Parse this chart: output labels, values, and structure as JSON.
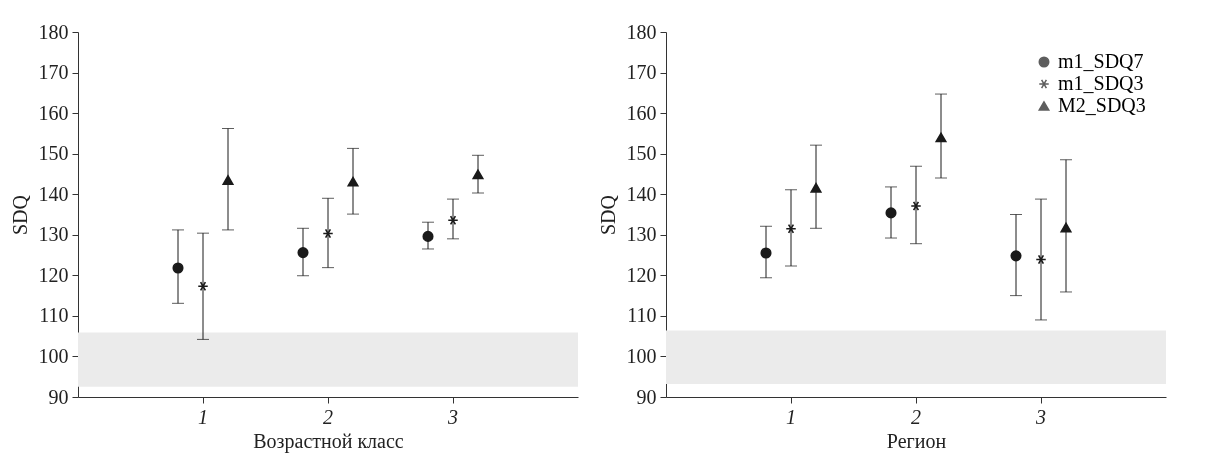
{
  "chart_data": [
    {
      "type": "scatter",
      "categories": [
        "1",
        "2",
        "3"
      ],
      "xlabel": "Возрастной класс",
      "ylabel": "SDQ",
      "ylim": [
        90,
        180
      ],
      "yticks": [
        90,
        100,
        110,
        120,
        130,
        140,
        150,
        160,
        170,
        180
      ],
      "grid": false,
      "bands": [
        {
          "axis": "y",
          "from": 92.5,
          "to": 105.9,
          "color": "#ebebeb"
        }
      ],
      "series": [
        {
          "color": "#1a1a1a",
          "marker": "circle",
          "values": [
            121.8,
            125.6,
            129.6
          ],
          "errors": [
            [
              113.1,
              131.2
            ],
            [
              119.9,
              131.6
            ],
            [
              126.5,
              133.1
            ]
          ]
        },
        {
          "color": "#1a1a1a",
          "marker": "cross",
          "values": [
            117.3,
            130.3,
            133.6
          ],
          "errors": [
            [
              104.2,
              130.4
            ],
            [
              121.9,
              139.0
            ],
            [
              129.0,
              138.8
            ]
          ]
        },
        {
          "color": "#1a1a1a",
          "marker": "triangle",
          "values": [
            143.5,
            143.1,
            144.9
          ],
          "errors": [
            [
              131.2,
              156.2
            ],
            [
              135.1,
              151.3
            ],
            [
              140.3,
              149.6
            ]
          ]
        }
      ]
    },
    {
      "type": "scatter",
      "categories": [
        "1",
        "2",
        "3"
      ],
      "xlabel": "Регион",
      "ylabel": "SDQ",
      "ylim": [
        90,
        180
      ],
      "yticks": [
        90,
        100,
        110,
        120,
        130,
        140,
        150,
        160,
        170,
        180
      ],
      "grid": false,
      "legend": "top right",
      "bands": [
        {
          "axis": "y",
          "from": 93.2,
          "to": 106.4,
          "color": "#ebebeb"
        }
      ],
      "series": [
        {
          "name": "m1_SDQ7",
          "color": "#1a1a1a",
          "marker": "circle",
          "values": [
            125.5,
            135.4,
            124.8
          ],
          "errors": [
            [
              119.4,
              132.1
            ],
            [
              129.2,
              141.8
            ],
            [
              115.0,
              135.0
            ]
          ]
        },
        {
          "name": "m1_SDQ3",
          "color": "#1a1a1a",
          "marker": "cross",
          "values": [
            131.5,
            137.1,
            123.9
          ],
          "errors": [
            [
              122.3,
              141.1
            ],
            [
              127.8,
              146.9
            ],
            [
              109.0,
              138.8
            ]
          ]
        },
        {
          "name": "M2_SDQ3",
          "color": "#1a1a1a",
          "marker": "triangle",
          "values": [
            141.6,
            154.0,
            131.8
          ],
          "errors": [
            [
              131.6,
              152.1
            ],
            [
              144.0,
              164.7
            ],
            [
              115.9,
              148.5
            ]
          ]
        }
      ]
    }
  ]
}
